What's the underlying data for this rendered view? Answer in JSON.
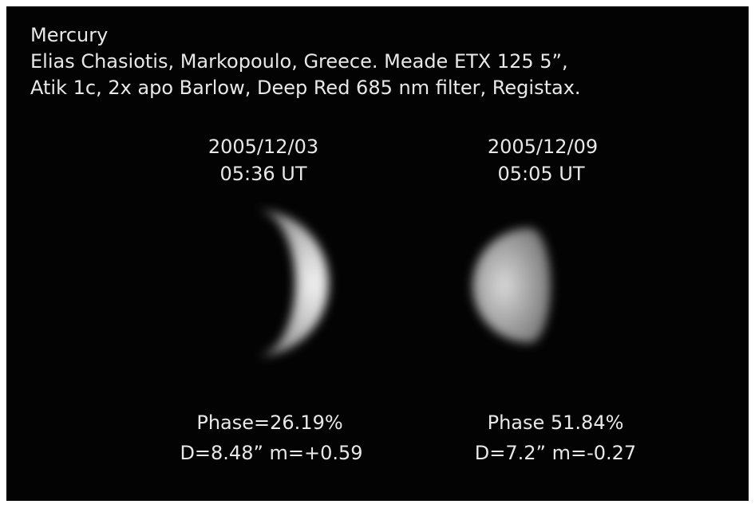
{
  "header": {
    "title": "Mercury",
    "lines": [
      "Elias Chasiotis, Markopoulo, Greece. Meade ETX 125 5”,",
      "Atik 1c, 2x apo Barlow, Deep Red 685 nm filter, Registax."
    ]
  },
  "panels": [
    {
      "date": "2005/12/03",
      "time": "05:36 UT",
      "phase": "Phase=26.19%",
      "details": "D=8.48” m=+0.59"
    },
    {
      "date": "2005/12/09",
      "time": "05:05 UT",
      "phase": "Phase 51.84%",
      "details": "D=7.2” m=-0.27"
    }
  ]
}
